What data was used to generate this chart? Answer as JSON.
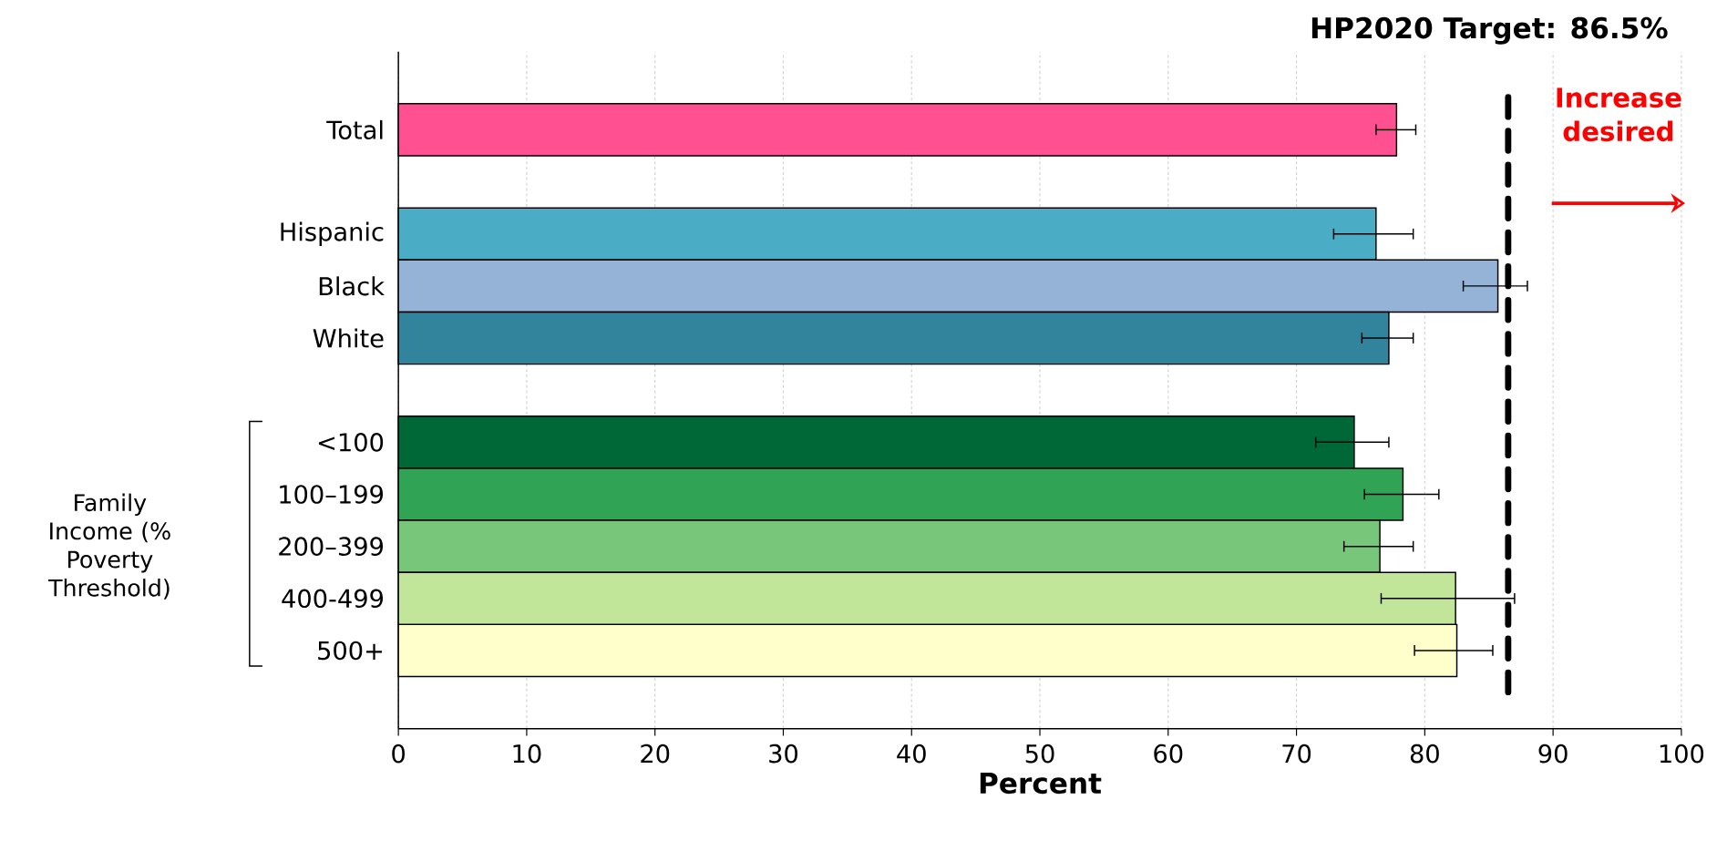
{
  "chart_data": {
    "type": "bar",
    "orientation": "horizontal",
    "categories": [
      "Total",
      null,
      "Hispanic",
      "Black",
      "White",
      null,
      "<100",
      "100–199",
      "200–399",
      "400-499",
      "500+"
    ],
    "values": [
      77.8,
      null,
      76.2,
      85.7,
      77.2,
      null,
      74.5,
      78.3,
      76.5,
      82.4,
      82.5
    ],
    "colors": [
      "#ff5191",
      "#ffffff",
      "#4bacc6",
      "#95b3d7",
      "#31849b",
      "#ffffff",
      "#006837",
      "#31a354",
      "#78c679",
      "#c2e699",
      "#ffffcc"
    ],
    "errors": [
      [
        76.2,
        79.3
      ],
      null,
      [
        72.9,
        79.1
      ],
      [
        83.0,
        88.0
      ],
      [
        75.1,
        79.1
      ],
      null,
      [
        71.5,
        77.2
      ],
      [
        75.3,
        81.1
      ],
      [
        73.7,
        79.1
      ],
      [
        76.6,
        87.0
      ],
      [
        79.2,
        85.3
      ]
    ],
    "xlabel": "Percent",
    "xlim": [
      0,
      100
    ],
    "xticks": [
      0,
      10,
      20,
      30,
      40,
      50,
      60,
      70,
      80,
      90,
      100
    ],
    "grid": "x",
    "ref_lines": [
      {
        "axis": "x",
        "value": 86.5,
        "label": "HP2020 Target: 86.5%",
        "color": "#000000",
        "line_style": "dashed"
      }
    ],
    "annotations": [
      "Increase desired",
      "Family Income (% Poverty Threshold)"
    ]
  }
}
